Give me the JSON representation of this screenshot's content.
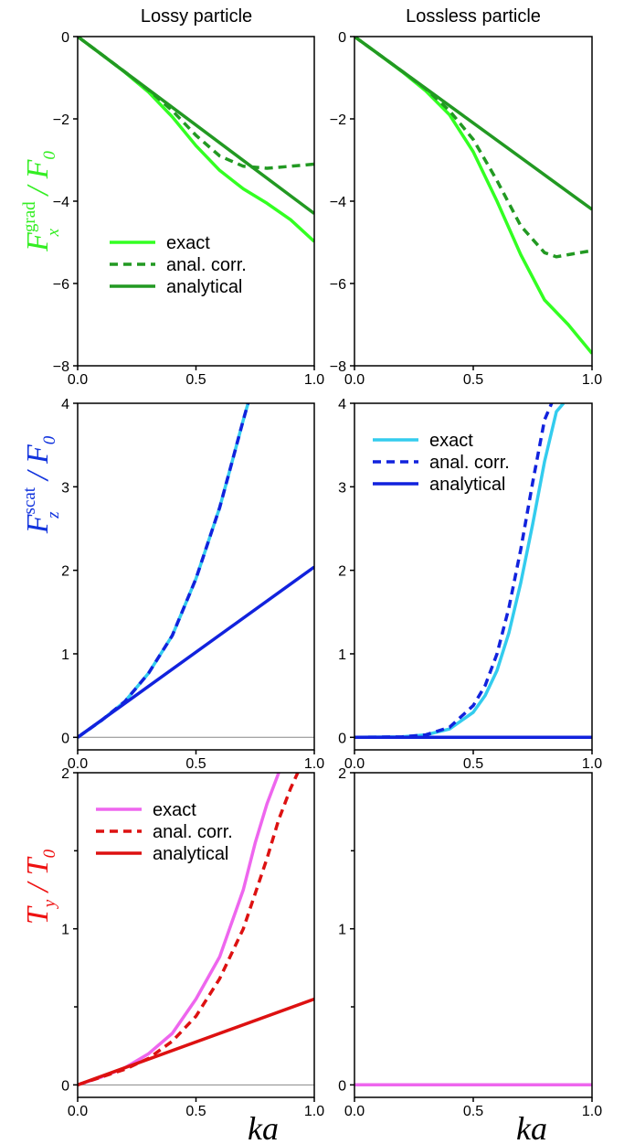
{
  "column_titles": [
    "Lossy particle",
    "Lossless particle"
  ],
  "xlabel": "ka",
  "row_labels": [
    {
      "base": "F",
      "sup": "grad",
      "sub": "x",
      "sep": " / ",
      "denom": "F",
      "denom_sub": "0",
      "color": "#33ee22"
    },
    {
      "base": "F",
      "sup": "scat",
      "sub": "z",
      "sep": " / ",
      "denom": "F",
      "denom_sub": "0",
      "color": "#1133dd"
    },
    {
      "base": "T",
      "sup": "",
      "sub": "y",
      "sep": " / ",
      "denom": "T",
      "denom_sub": "0",
      "color": "#ee1111"
    }
  ],
  "chart_data": [
    {
      "type": "line",
      "panel": "row1-left",
      "xlim": [
        0,
        1
      ],
      "ylim": [
        -8,
        0
      ],
      "xticks": [
        "0.0",
        "0.5",
        "1.0"
      ],
      "yticks": [
        "-8",
        "-6",
        "-4",
        "-2",
        "0"
      ],
      "yticks_values": [
        -8,
        -6,
        -4,
        -2,
        0
      ],
      "legend": {
        "position": "center-left",
        "entries": [
          "exact",
          "anal. corr.",
          "analytical"
        ]
      },
      "series": [
        {
          "name": "exact",
          "color": "#33ff22",
          "style": "solid",
          "x": [
            0,
            0.1,
            0.2,
            0.3,
            0.4,
            0.5,
            0.6,
            0.7,
            0.8,
            0.9,
            1.0
          ],
          "y": [
            0,
            -0.43,
            -0.87,
            -1.35,
            -1.95,
            -2.65,
            -3.25,
            -3.7,
            -4.05,
            -4.45,
            -4.98
          ]
        },
        {
          "name": "anal. corr.",
          "color": "#229922",
          "style": "dashed",
          "x": [
            0,
            0.1,
            0.2,
            0.3,
            0.4,
            0.5,
            0.6,
            0.7,
            0.8,
            0.9,
            1.0
          ],
          "y": [
            0,
            -0.43,
            -0.86,
            -1.3,
            -1.8,
            -2.4,
            -2.9,
            -3.15,
            -3.2,
            -3.15,
            -3.1
          ]
        },
        {
          "name": "analytical",
          "color": "#229922",
          "style": "solid",
          "x": [
            0,
            1.0
          ],
          "y": [
            0,
            -4.3
          ]
        }
      ]
    },
    {
      "type": "line",
      "panel": "row1-right",
      "xlim": [
        0,
        1
      ],
      "ylim": [
        -8,
        0
      ],
      "xticks": [
        "0.0",
        "0.5",
        "1.0"
      ],
      "yticks": [
        "-8",
        "-6",
        "-4",
        "-2",
        "0"
      ],
      "yticks_values": [
        -8,
        -6,
        -4,
        -2,
        0
      ],
      "series": [
        {
          "name": "exact",
          "color": "#33ff22",
          "style": "solid",
          "x": [
            0,
            0.1,
            0.2,
            0.3,
            0.4,
            0.5,
            0.6,
            0.7,
            0.8,
            0.9,
            1.0
          ],
          "y": [
            0,
            -0.42,
            -0.85,
            -1.32,
            -1.9,
            -2.8,
            -4.0,
            -5.3,
            -6.4,
            -7.0,
            -7.7
          ]
        },
        {
          "name": "anal. corr.",
          "color": "#229922",
          "style": "dashed",
          "x": [
            0,
            0.1,
            0.2,
            0.3,
            0.4,
            0.5,
            0.6,
            0.7,
            0.8,
            0.85,
            0.9,
            1.0
          ],
          "y": [
            0,
            -0.42,
            -0.84,
            -1.27,
            -1.8,
            -2.5,
            -3.5,
            -4.6,
            -5.25,
            -5.35,
            -5.3,
            -5.2
          ]
        },
        {
          "name": "analytical",
          "color": "#229922",
          "style": "solid",
          "x": [
            0,
            1.0
          ],
          "y": [
            0,
            -4.2
          ]
        }
      ]
    },
    {
      "type": "line",
      "panel": "row2-left",
      "xlim": [
        0,
        1
      ],
      "ylim": [
        -0.15,
        4
      ],
      "xticks": [
        "0.0",
        "0.5",
        "1.0"
      ],
      "yticks": [
        "0",
        "1",
        "2",
        "3",
        "4"
      ],
      "yticks_values": [
        0,
        1,
        2,
        3,
        4
      ],
      "zero_line": true,
      "series": [
        {
          "name": "exact",
          "color": "#33ccee",
          "style": "solid",
          "x": [
            0,
            0.1,
            0.2,
            0.3,
            0.4,
            0.5,
            0.6,
            0.65,
            0.7,
            0.72
          ],
          "y": [
            0,
            0.2,
            0.43,
            0.77,
            1.22,
            1.9,
            2.75,
            3.27,
            3.8,
            4.0
          ]
        },
        {
          "name": "anal. corr.",
          "color": "#1122dd",
          "style": "dashed",
          "x": [
            0,
            0.1,
            0.2,
            0.3,
            0.4,
            0.5,
            0.6,
            0.65,
            0.7,
            0.72
          ],
          "y": [
            0,
            0.2,
            0.43,
            0.77,
            1.22,
            1.9,
            2.75,
            3.27,
            3.8,
            4.0
          ]
        },
        {
          "name": "analytical",
          "color": "#1122dd",
          "style": "solid",
          "x": [
            0,
            1.0
          ],
          "y": [
            0,
            2.04
          ]
        }
      ]
    },
    {
      "type": "line",
      "panel": "row2-right",
      "xlim": [
        0,
        1
      ],
      "ylim": [
        -0.15,
        4
      ],
      "xticks": [
        "0.0",
        "0.5",
        "1.0"
      ],
      "yticks": [
        "0",
        "1",
        "2",
        "3",
        "4"
      ],
      "yticks_values": [
        0,
        1,
        2,
        3,
        4
      ],
      "zero_line": true,
      "legend": {
        "position": "top-left",
        "entries": [
          "exact",
          "anal. corr.",
          "analytical"
        ]
      },
      "series": [
        {
          "name": "exact",
          "color": "#33ccee",
          "style": "solid",
          "x": [
            0,
            0.2,
            0.3,
            0.4,
            0.5,
            0.55,
            0.6,
            0.65,
            0.7,
            0.75,
            0.8,
            0.85,
            0.88
          ],
          "y": [
            0,
            0.005,
            0.03,
            0.1,
            0.3,
            0.5,
            0.8,
            1.25,
            1.85,
            2.55,
            3.3,
            3.9,
            4.0
          ]
        },
        {
          "name": "anal. corr.",
          "color": "#1122dd",
          "style": "dashed",
          "x": [
            0,
            0.2,
            0.3,
            0.4,
            0.5,
            0.55,
            0.6,
            0.65,
            0.7,
            0.75,
            0.8,
            0.83
          ],
          "y": [
            0,
            0.005,
            0.03,
            0.12,
            0.38,
            0.62,
            1.0,
            1.55,
            2.25,
            3.05,
            3.8,
            4.0
          ]
        },
        {
          "name": "analytical",
          "color": "#1122dd",
          "style": "solid",
          "x": [
            0,
            1.0
          ],
          "y": [
            0,
            0
          ]
        }
      ]
    },
    {
      "type": "line",
      "panel": "row3-left",
      "xlim": [
        0,
        1
      ],
      "ylim": [
        -0.08,
        2
      ],
      "xticks": [
        "0.0",
        "0.5",
        "1.0"
      ],
      "yticks": [
        "0",
        "1",
        "2"
      ],
      "yticks_values": [
        0,
        1,
        2
      ],
      "minor_yticks": [
        0.5,
        1.5
      ],
      "zero_line": true,
      "legend": {
        "position": "top-left",
        "entries": [
          "exact",
          "anal. corr.",
          "analytical"
        ]
      },
      "series": [
        {
          "name": "exact",
          "color": "#ee66ee",
          "style": "solid",
          "x": [
            0,
            0.1,
            0.2,
            0.3,
            0.4,
            0.5,
            0.6,
            0.7,
            0.75,
            0.8,
            0.85
          ],
          "y": [
            0,
            0.05,
            0.11,
            0.2,
            0.33,
            0.55,
            0.82,
            1.25,
            1.55,
            1.8,
            2.0
          ]
        },
        {
          "name": "anal. corr.",
          "color": "#dd1111",
          "style": "dashed",
          "x": [
            0,
            0.1,
            0.2,
            0.3,
            0.4,
            0.5,
            0.6,
            0.7,
            0.8,
            0.85,
            0.9,
            0.93
          ],
          "y": [
            0,
            0.05,
            0.1,
            0.17,
            0.28,
            0.44,
            0.68,
            1.0,
            1.45,
            1.7,
            1.9,
            2.0
          ]
        },
        {
          "name": "analytical",
          "color": "#dd1111",
          "style": "solid",
          "x": [
            0,
            1.0
          ],
          "y": [
            0,
            0.55
          ]
        }
      ]
    },
    {
      "type": "line",
      "panel": "row3-right",
      "xlim": [
        0,
        1
      ],
      "ylim": [
        -0.08,
        2
      ],
      "xticks": [
        "0.0",
        "0.5",
        "1.0"
      ],
      "yticks": [
        "0",
        "1",
        "2"
      ],
      "yticks_values": [
        0,
        1,
        2
      ],
      "minor_yticks": [
        0.5,
        1.5
      ],
      "series": [
        {
          "name": "exact",
          "color": "#ee66ee",
          "style": "solid",
          "x": [
            0,
            1.0
          ],
          "y": [
            0,
            0
          ]
        }
      ]
    }
  ]
}
